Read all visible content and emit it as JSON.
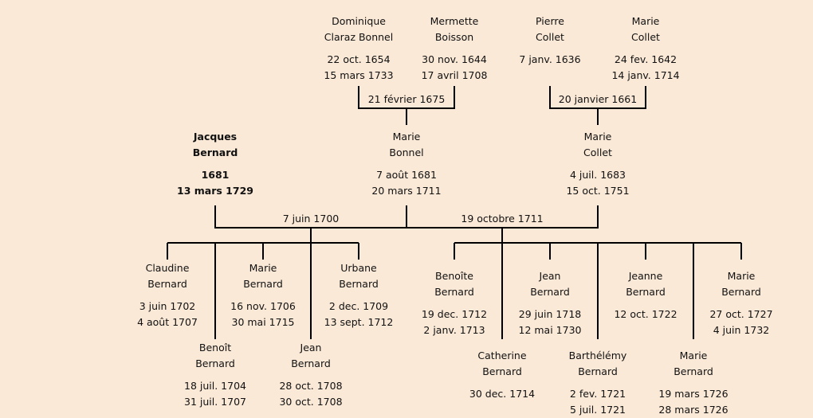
{
  "grandparents": [
    {
      "first": "Dominique",
      "last": "Claraz Bonnel",
      "birth": "22 oct. 1654",
      "death": "15 mars 1733"
    },
    {
      "first": "Mermette",
      "last": "Boisson",
      "birth": "30 nov. 1644",
      "death": "17 avril 1708"
    },
    {
      "first": "Pierre",
      "last": "Collet",
      "birth": "7 janv. 1636",
      "death": ""
    },
    {
      "first": "Marie",
      "last": "Collet",
      "birth": "24 fev. 1642",
      "death": "14 janv. 1714"
    }
  ],
  "grandparent_marriages": [
    "21 février 1675",
    "20 janvier 1661"
  ],
  "parents": [
    {
      "first": "Jacques",
      "last": "Bernard",
      "birth": "1681",
      "death": "13 mars 1729"
    },
    {
      "first": "Marie",
      "last": "Bonnel",
      "birth": "7 août 1681",
      "death": "20 mars 1711"
    },
    {
      "first": "Marie",
      "last": "Collet",
      "birth": "4 juil. 1683",
      "death": "15 oct. 1751"
    }
  ],
  "marriages": [
    "7 juin 1700",
    "19 octobre 1711"
  ],
  "children": [
    {
      "first": "Claudine",
      "last": "Bernard",
      "birth": "3 juin 1702",
      "death": "4 août 1707"
    },
    {
      "first": "Benoît",
      "last": "Bernard",
      "birth": "18 juil. 1704",
      "death": "31 juil. 1707"
    },
    {
      "first": "Marie",
      "last": "Bernard",
      "birth": "16 nov. 1706",
      "death": "30 mai 1715"
    },
    {
      "first": "Jean",
      "last": "Bernard",
      "birth": "28 oct. 1708",
      "death": "30 oct. 1708"
    },
    {
      "first": "Urbane",
      "last": "Bernard",
      "birth": "2 dec. 1709",
      "death": "13 sept. 1712"
    },
    {
      "first": "Benoîte",
      "last": "Bernard",
      "birth": "19 dec. 1712",
      "death": "2 janv. 1713"
    },
    {
      "first": "Catherine",
      "last": "Bernard",
      "birth": "30 dec. 1714",
      "death": ""
    },
    {
      "first": "Jean",
      "last": "Bernard",
      "birth": "29 juin 1718",
      "death": "12 mai 1730"
    },
    {
      "first": "Barthélémy",
      "last": "Bernard",
      "birth": "2 fev. 1721",
      "death": "5 juil. 1721"
    },
    {
      "first": "Jeanne",
      "last": "Bernard",
      "birth": "12 oct. 1722",
      "death": ""
    },
    {
      "first": "Marie",
      "last": "Bernard",
      "birth": "19 mars 1726",
      "death": "28 mars 1726"
    },
    {
      "first": "Marie",
      "last": "Bernard",
      "birth": "27 oct. 1727",
      "death": "4 juin 1732"
    }
  ]
}
